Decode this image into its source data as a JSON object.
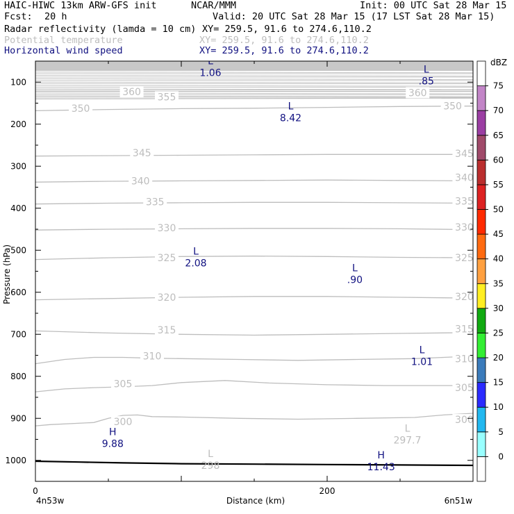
{
  "header": {
    "model": "HAIC-HIWC 13km ARW-GFS init",
    "org": "NCAR/MMM",
    "init": "Init: 00 UTC Sat 28 Mar 15",
    "fcst_label": "Fcst:",
    "fcst_value": "20 h",
    "valid": "Valid: 20 UTC Sat 28 Mar 15 (17 LST Sat 28 Mar 15)",
    "fields": [
      {
        "name": "Radar reflectivity (lamda = 10 cm)",
        "xy": "XY= 259.5, 91.6 to 274.6,110.2",
        "color": "#000000"
      },
      {
        "name": "Potential temperature",
        "xy": "XY= 259.5, 91.6 to 274.6,110.2",
        "color": "#bdbdbd"
      },
      {
        "name": "Horizontal wind speed",
        "xy": "XY= 259.5, 91.6 to 274.6,110.2",
        "color": "#101080"
      }
    ]
  },
  "chart_data": {
    "type": "line",
    "title": "",
    "xlabel": "Distance (km)",
    "ylabel": "Pressure (hPa)",
    "xlim": [
      0,
      300
    ],
    "ylim": [
      1050,
      50
    ],
    "x_ticks": [
      {
        "value": 0,
        "label": "0"
      },
      {
        "value": 200,
        "label": "200"
      }
    ],
    "x_end_labels": {
      "left": "4n53w",
      "right": "6n51w"
    },
    "y_ticks": [
      {
        "value": 100,
        "label": "100"
      },
      {
        "value": 200,
        "label": "200"
      },
      {
        "value": 300,
        "label": "300"
      },
      {
        "value": 400,
        "label": "400"
      },
      {
        "value": 500,
        "label": "500"
      },
      {
        "value": 600,
        "label": "600"
      },
      {
        "value": 700,
        "label": "700"
      },
      {
        "value": 800,
        "label": "800"
      },
      {
        "value": 900,
        "label": "900"
      },
      {
        "value": 1000,
        "label": "1000"
      }
    ],
    "grid": false,
    "potential_temperature_isentropes": [
      {
        "label": "300",
        "x": [
          0,
          10,
          40,
          50,
          60,
          70,
          80,
          100,
          140,
          180,
          220,
          260,
          280,
          300
        ],
        "p": [
          918,
          915,
          910,
          900,
          893,
          892,
          896,
          897,
          900,
          902,
          900,
          898,
          892,
          888
        ]
      },
      {
        "label": "305",
        "x": [
          0,
          20,
          40,
          60,
          80,
          100,
          130,
          160,
          200,
          240,
          280,
          300
        ],
        "p": [
          837,
          830,
          827,
          825,
          822,
          815,
          810,
          816,
          820,
          822,
          822,
          822
        ]
      },
      {
        "label": "310",
        "x": [
          0,
          20,
          40,
          60,
          80,
          100,
          140,
          180,
          220,
          260,
          280,
          300
        ],
        "p": [
          770,
          760,
          755,
          755,
          757,
          758,
          760,
          762,
          760,
          758,
          755,
          752
        ]
      },
      {
        "label": "315",
        "x": [
          0,
          50,
          100,
          150,
          200,
          250,
          300
        ],
        "p": [
          692,
          697,
          700,
          702,
          700,
          698,
          696
        ]
      },
      {
        "label": "320",
        "x": [
          0,
          50,
          100,
          150,
          200,
          250,
          300
        ],
        "p": [
          618,
          615,
          612,
          610,
          610,
          612,
          614
        ]
      },
      {
        "label": "325",
        "x": [
          0,
          50,
          100,
          150,
          200,
          250,
          300
        ],
        "p": [
          522,
          518,
          515,
          514,
          515,
          517,
          518
        ]
      },
      {
        "label": "330",
        "x": [
          0,
          50,
          100,
          150,
          200,
          250,
          300
        ],
        "p": [
          452,
          450,
          449,
          448,
          448,
          449,
          451
        ]
      },
      {
        "label": "335",
        "x": [
          0,
          50,
          100,
          150,
          200,
          250,
          300
        ],
        "p": [
          390,
          388,
          387,
          386,
          386,
          387,
          388
        ]
      },
      {
        "label": "340",
        "x": [
          0,
          50,
          100,
          150,
          200,
          250,
          300
        ],
        "p": [
          338,
          336,
          335,
          334,
          333,
          334,
          335
        ]
      },
      {
        "label": "345",
        "x": [
          0,
          50,
          100,
          150,
          200,
          250,
          300
        ],
        "p": [
          276,
          275,
          274,
          273,
          272,
          272,
          272
        ]
      },
      {
        "label": "350",
        "x": [
          0,
          50,
          100,
          150,
          200,
          250,
          300
        ],
        "p": [
          168,
          165,
          163,
          162,
          160,
          158,
          157
        ]
      },
      {
        "label": "355",
        "x": [
          0,
          300
        ],
        "p": [
          140,
          138
        ]
      },
      {
        "label": "360",
        "x": [
          0,
          300
        ],
        "p": [
          122,
          122
        ]
      }
    ],
    "stratospheric_isentropes_p": [
      72,
      76,
      80,
      84,
      88,
      92,
      96,
      100,
      104,
      108,
      112,
      116,
      119,
      126,
      130,
      133,
      136
    ],
    "isentrope_labels": [
      {
        "text": "300",
        "x": 60,
        "p": 908
      },
      {
        "text": "300",
        "x": 294,
        "p": 903
      },
      {
        "text": "305",
        "x": 60,
        "p": 818
      },
      {
        "text": "305",
        "x": 294,
        "p": 827
      },
      {
        "text": "310",
        "x": 80,
        "p": 752
      },
      {
        "text": "310",
        "x": 294,
        "p": 758
      },
      {
        "text": "315",
        "x": 90,
        "p": 690
      },
      {
        "text": "315",
        "x": 294,
        "p": 687
      },
      {
        "text": "320",
        "x": 90,
        "p": 612
      },
      {
        "text": "320",
        "x": 294,
        "p": 610
      },
      {
        "text": "325",
        "x": 90,
        "p": 518
      },
      {
        "text": "325",
        "x": 294,
        "p": 518
      },
      {
        "text": "330",
        "x": 90,
        "p": 447
      },
      {
        "text": "330",
        "x": 294,
        "p": 445
      },
      {
        "text": "335",
        "x": 82,
        "p": 385
      },
      {
        "text": "335",
        "x": 294,
        "p": 383
      },
      {
        "text": "340",
        "x": 72,
        "p": 335
      },
      {
        "text": "340",
        "x": 294,
        "p": 327
      },
      {
        "text": "345",
        "x": 73,
        "p": 268
      },
      {
        "text": "345",
        "x": 294,
        "p": 270
      },
      {
        "text": "350",
        "x": 31,
        "p": 162
      },
      {
        "text": "350",
        "x": 286,
        "p": 157
      },
      {
        "text": "355",
        "x": 90,
        "p": 135
      },
      {
        "text": "360",
        "x": 66,
        "p": 123
      },
      {
        "text": "360",
        "x": 262,
        "p": 125
      }
    ],
    "temperature_extrema": [
      {
        "mark": "L",
        "value": "297.7",
        "x": 255,
        "p": 952
      },
      {
        "mark": "L",
        "value": "298",
        "x": 120,
        "p": 1012
      }
    ],
    "wind_speed_extrema": [
      {
        "mark": "L",
        "value": "1.06",
        "x": 120,
        "p": 77
      },
      {
        "mark": "L",
        "value": ".85",
        "x": 268,
        "p": 97
      },
      {
        "mark": "L",
        "value": "8.42",
        "x": 175,
        "p": 185
      },
      {
        "mark": "L",
        "value": "2.08",
        "x": 110,
        "p": 530
      },
      {
        "mark": "L",
        "value": ".90",
        "x": 219,
        "p": 570
      },
      {
        "mark": "L",
        "value": "1.01",
        "x": 265,
        "p": 765
      },
      {
        "mark": "H",
        "value": "9.88",
        "x": 53,
        "p": 960
      },
      {
        "mark": "H",
        "value": "11.43",
        "x": 237,
        "p": 1015
      }
    ],
    "ground_pressure": {
      "x": [
        0,
        30,
        60,
        100,
        150,
        200,
        250,
        300
      ],
      "p": [
        1002,
        1004,
        1006,
        1008,
        1009,
        1010,
        1011,
        1012
      ]
    },
    "top_shading": {
      "p_top": 50,
      "p_bottom": 73,
      "color": "#c8c8c8"
    },
    "colorbar": {
      "unit": "dBZ",
      "levels": [
        "0",
        "5",
        "10",
        "15",
        "20",
        "25",
        "30",
        "35",
        "40",
        "45",
        "50",
        "55",
        "60",
        "65",
        "70",
        "75"
      ],
      "colors": [
        "#ffffff",
        "#99ffff",
        "#22b8f0",
        "#2b2bff",
        "#3b7bbb",
        "#33ee33",
        "#11aa11",
        "#ffee22",
        "#ffa040",
        "#ff6a10",
        "#ff2a00",
        "#dd2222",
        "#ba2e2e",
        "#a04a6a",
        "#9b3ea3",
        "#c285c7",
        "#ffffff"
      ]
    }
  }
}
